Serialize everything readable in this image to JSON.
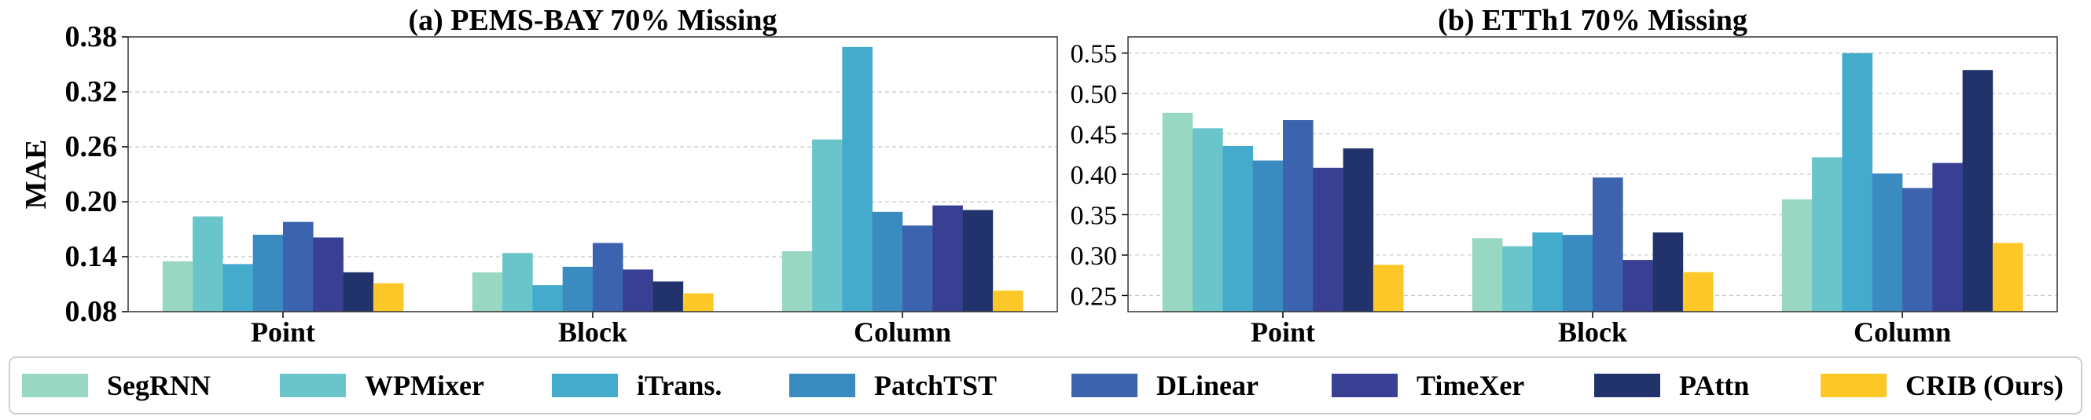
{
  "legend": {
    "colors": [
      "#98d8c2",
      "#6ac5cb",
      "#45abcd",
      "#3a8bc0",
      "#3b63ae",
      "#393f92",
      "#22336b",
      "#fdc827"
    ]
  },
  "chart_data": [
    {
      "type": "bar",
      "title": "(a) PEMS-BAY 70% Missing",
      "xlabel": "",
      "ylabel": "MAE",
      "ylim": [
        0.08,
        0.38
      ],
      "yticks": [
        "0.08",
        "0.14",
        "0.20",
        "0.26",
        "0.32",
        "0.38"
      ],
      "grid": true,
      "categories": [
        "Point",
        "Block",
        "Column"
      ],
      "series": [
        {
          "name": "SegRNN",
          "values": [
            0.135,
            0.123,
            0.146
          ]
        },
        {
          "name": "WPMixer",
          "values": [
            0.184,
            0.144,
            0.268
          ]
        },
        {
          "name": "iTrans.",
          "values": [
            0.132,
            0.109,
            0.369
          ]
        },
        {
          "name": "PatchTST",
          "values": [
            0.164,
            0.129,
            0.189
          ]
        },
        {
          "name": "DLinear",
          "values": [
            0.178,
            0.155,
            0.174
          ]
        },
        {
          "name": "TimeXer",
          "values": [
            0.161,
            0.126,
            0.196
          ]
        },
        {
          "name": "PAttn",
          "values": [
            0.123,
            0.113,
            0.191
          ]
        },
        {
          "name": "CRIB (Ours)",
          "values": [
            0.111,
            0.1,
            0.103
          ]
        }
      ]
    },
    {
      "type": "bar",
      "title": "(b) ETTh1 70% Missing",
      "xlabel": "",
      "ylabel": "",
      "ylim": [
        0.23,
        0.57
      ],
      "yticks": [
        "0.25",
        "0.30",
        "0.35",
        "0.40",
        "0.45",
        "0.50",
        "0.55"
      ],
      "grid": true,
      "categories": [
        "Point",
        "Block",
        "Column"
      ],
      "series": [
        {
          "name": "SegRNN",
          "values": [
            0.476,
            0.321,
            0.369
          ]
        },
        {
          "name": "WPMixer",
          "values": [
            0.457,
            0.311,
            0.421
          ]
        },
        {
          "name": "iTrans.",
          "values": [
            0.435,
            0.328,
            0.55
          ]
        },
        {
          "name": "PatchTST",
          "values": [
            0.417,
            0.325,
            0.401
          ]
        },
        {
          "name": "DLinear",
          "values": [
            0.467,
            0.396,
            0.383
          ]
        },
        {
          "name": "TimeXer",
          "values": [
            0.408,
            0.294,
            0.414
          ]
        },
        {
          "name": "PAttn",
          "values": [
            0.432,
            0.328,
            0.529
          ]
        },
        {
          "name": "CRIB (Ours)",
          "values": [
            0.288,
            0.279,
            0.315
          ]
        }
      ]
    }
  ]
}
